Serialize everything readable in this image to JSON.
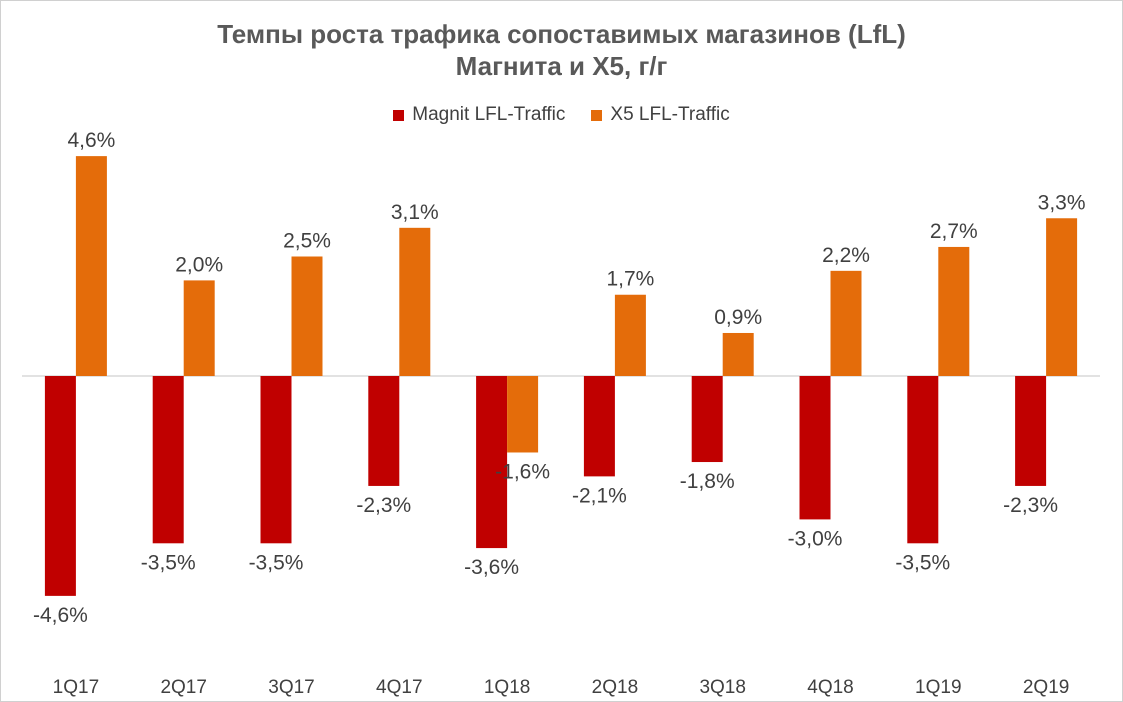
{
  "chart_data": {
    "type": "bar",
    "title_line1": "Темпы роста трафика сопоставимых магазинов (LfL)",
    "title_line2": "Магнита и X5, г/г",
    "categories": [
      "1Q17",
      "2Q17",
      "3Q17",
      "4Q17",
      "1Q18",
      "2Q18",
      "3Q18",
      "4Q18",
      "1Q19",
      "2Q19"
    ],
    "series": [
      {
        "name": "Magnit LFL-Traffic",
        "color": "#C00000",
        "values": [
          -4.6,
          -3.5,
          -3.5,
          -2.3,
          -3.6,
          -2.1,
          -1.8,
          -3.0,
          -3.5,
          -2.3
        ],
        "labels": [
          "-4,6%",
          "-3,5%",
          "-3,5%",
          "-2,3%",
          "-3,6%",
          "-2,1%",
          "-1,8%",
          "-3,0%",
          "-3,5%",
          "-2,3%"
        ]
      },
      {
        "name": "X5 LFL-Traffic",
        "color": "#E46C0A",
        "values": [
          4.6,
          2.0,
          2.5,
          3.1,
          -1.6,
          1.7,
          0.9,
          2.2,
          2.7,
          3.3
        ],
        "labels": [
          "4,6%",
          "2,0%",
          "2,5%",
          "3,1%",
          "-1,6%",
          "1,7%",
          "0,9%",
          "2,2%",
          "2,7%",
          "3,3%"
        ]
      }
    ],
    "legend_position": "top",
    "grid": false
  }
}
